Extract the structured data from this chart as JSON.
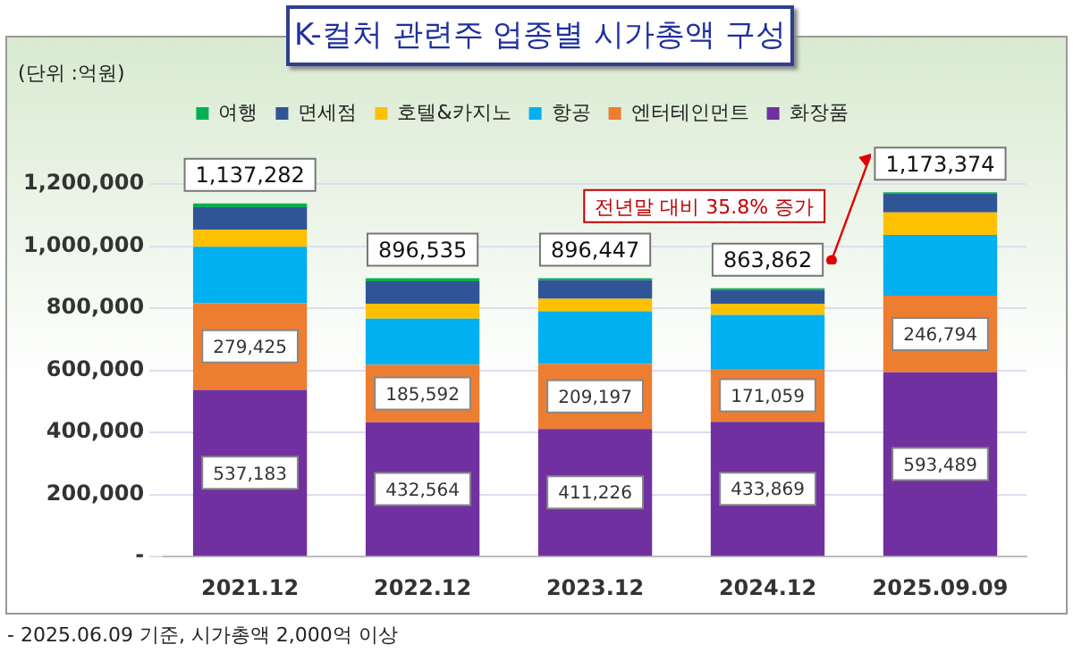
{
  "chart_data": {
    "type": "bar",
    "title": "K-컬처 관련주 업종별 시가총액 구성",
    "ylabel": "(단위 :억원)",
    "categories": [
      "2021.12",
      "2022.12",
      "2023.12",
      "2024.12",
      "2025.09.09"
    ],
    "stacked": true,
    "grid": "y",
    "legend": "top",
    "ylim": [
      0,
      1200000
    ],
    "yticks": [
      {
        "value": 0,
        "label": "-"
      },
      {
        "value": 200000,
        "label": "200,000"
      },
      {
        "value": 400000,
        "label": "400,000"
      },
      {
        "value": 600000,
        "label": "600,000"
      },
      {
        "value": 800000,
        "label": "800,000"
      },
      {
        "value": 1000000,
        "label": "1,000,000"
      },
      {
        "value": 1200000,
        "label": "1,200,000"
      }
    ],
    "series": [
      {
        "name": "화장품",
        "color": "#7030a0",
        "values": [
          537183,
          432564,
          411226,
          433869,
          593489
        ],
        "value_labels": [
          "537,183",
          "432,564",
          "411,226",
          "433,869",
          "593,489"
        ]
      },
      {
        "name": "엔터테인먼트",
        "color": "#ed7d31",
        "values": [
          279425,
          185592,
          209197,
          171059,
          246794
        ],
        "value_labels": [
          "279,425",
          "185,592",
          "209,197",
          "171,059",
          "246,794"
        ]
      },
      {
        "name": "항공",
        "color": "#00b0f0",
        "values": [
          181674,
          148000,
          170024,
          173934,
          196091
        ]
      },
      {
        "name": "호텔&카지노",
        "color": "#ffc000",
        "values": [
          55000,
          48379,
          40000,
          36000,
          72000
        ]
      },
      {
        "name": "면세점",
        "color": "#2f5597",
        "values": [
          72000,
          72000,
          60000,
          44000,
          61000
        ]
      },
      {
        "name": "여행",
        "color": "#00b050",
        "values": [
          12000,
          10000,
          6000,
          5000,
          4000
        ]
      }
    ],
    "totals": [
      "1,137,282",
      "896,535",
      "896,447",
      "863,862",
      "1,173,374"
    ],
    "annotations": [
      "전년말 대비 35.8% 증가",
      "- 2025.06.09 기준, 시가총액 2,000억 이상"
    ]
  }
}
